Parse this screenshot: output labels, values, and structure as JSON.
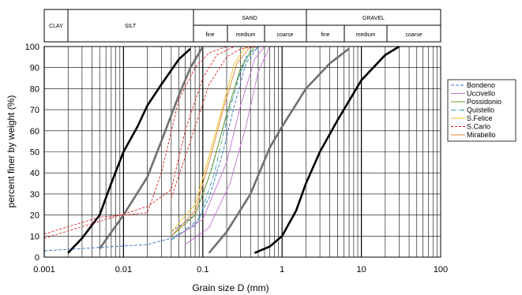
{
  "chart_data": {
    "type": "line",
    "xscale": "log",
    "xlim": [
      0.001,
      100
    ],
    "ylim": [
      0,
      100
    ],
    "xlabel": "Grain size D (mm)",
    "ylabel": "percent finer by weight (%)",
    "xticks": [
      "0.001",
      "0.01",
      "0.1",
      "1",
      "10",
      "100"
    ],
    "yticks": [
      "0",
      "10",
      "20",
      "30",
      "40",
      "50",
      "60",
      "70",
      "80",
      "90",
      "100"
    ],
    "grid": true,
    "legend_position": "right",
    "classification": {
      "clay": "CLAY",
      "silt": "SILT",
      "sand": "SAND",
      "gravel": "GRAVEL",
      "fine": "fine",
      "medium": "medium",
      "coarse": "coarse"
    },
    "envelopes": [
      {
        "color": "#000000",
        "x": [
          0.002,
          0.003,
          0.005,
          0.007,
          0.01,
          0.015,
          0.02,
          0.03,
          0.05,
          0.07
        ],
        "y": [
          2,
          9,
          20,
          35,
          50,
          62,
          72,
          82,
          94,
          99
        ]
      },
      {
        "color": "#707070",
        "x": [
          0.005,
          0.01,
          0.02,
          0.03,
          0.05,
          0.07,
          0.1
        ],
        "y": [
          4,
          20,
          38,
          55,
          77,
          90,
          100
        ]
      },
      {
        "color": "#707070",
        "x": [
          0.12,
          0.2,
          0.4,
          0.7,
          1.0,
          2.0,
          4.0,
          7.0
        ],
        "y": [
          2,
          12,
          30,
          52,
          62,
          80,
          92,
          99
        ]
      },
      {
        "color": "#000000",
        "x": [
          0.45,
          0.7,
          1.0,
          1.5,
          2.0,
          3.0,
          5.0,
          10.0,
          20.0,
          30.0
        ],
        "y": [
          2,
          5,
          10,
          22,
          35,
          50,
          65,
          84,
          96,
          100
        ]
      }
    ],
    "series": [
      {
        "name": "Bondeno",
        "color": "#2f6fc0",
        "dash": "4,2",
        "curves": [
          {
            "x": [
              0.001,
              0.02,
              0.04,
              0.08,
              0.12,
              0.18,
              0.25,
              0.35,
              0.5
            ],
            "y": [
              3,
              6,
              9,
              15,
              28,
              50,
              72,
              92,
              100
            ]
          },
          {
            "x": [
              0.04,
              0.08,
              0.12,
              0.17,
              0.25,
              0.35,
              0.5
            ],
            "y": [
              12,
              20,
              38,
              58,
              80,
              95,
              100
            ]
          }
        ]
      },
      {
        "name": "Uccivello",
        "color": "#c070d0",
        "dash": "",
        "curves": [
          {
            "x": [
              0.04,
              0.1,
              0.2,
              0.3,
              0.45,
              0.6
            ],
            "y": [
              8,
              18,
              45,
              72,
              94,
              100
            ]
          },
          {
            "x": [
              0.06,
              0.12,
              0.22,
              0.35,
              0.5,
              0.7
            ],
            "y": [
              6,
              14,
              35,
              62,
              88,
              100
            ]
          }
        ]
      },
      {
        "name": "Possidonio",
        "color": "#6a9a20",
        "dash": "",
        "curves": [
          {
            "x": [
              0.04,
              0.08,
              0.13,
              0.2,
              0.3,
              0.45
            ],
            "y": [
              10,
              20,
              42,
              68,
              90,
              100
            ]
          }
        ]
      },
      {
        "name": "Quistello",
        "color": "#30a0a0",
        "dash": "6,2,1,2",
        "curves": [
          {
            "x": [
              0.04,
              0.09,
              0.14,
              0.2,
              0.3,
              0.42
            ],
            "y": [
              8,
              18,
              40,
              65,
              88,
              100
            ]
          }
        ]
      },
      {
        "name": "S.Felice",
        "color": "#f0c020",
        "dash": "",
        "curves": [
          {
            "x": [
              0.04,
              0.08,
              0.12,
              0.18,
              0.25,
              0.35
            ],
            "y": [
              12,
              25,
              48,
              72,
              92,
              100
            ]
          }
        ]
      },
      {
        "name": "S.Carlo",
        "color": "#e02020",
        "dash": "3,2",
        "curves": [
          {
            "x": [
              0.001,
              0.005,
              0.02,
              0.04,
              0.06,
              0.1,
              0.15,
              0.25
            ],
            "y": [
              9,
              17,
              24,
              32,
              60,
              85,
              96,
              100
            ]
          },
          {
            "x": [
              0.001,
              0.005,
              0.02,
              0.03,
              0.05,
              0.08,
              0.12,
              0.2
            ],
            "y": [
              11,
              19,
              21,
              40,
              75,
              90,
              97,
              100
            ]
          },
          {
            "x": [
              0.04,
              0.07,
              0.12,
              0.2,
              0.3,
              0.5
            ],
            "y": [
              28,
              55,
              82,
              95,
              99,
              100
            ]
          }
        ]
      },
      {
        "name": "Mirabello",
        "color": "#e08030",
        "dash": "",
        "curves": [
          {
            "x": [
              0.04,
              0.08,
              0.12,
              0.18,
              0.27,
              0.4
            ],
            "y": [
              10,
              22,
              45,
              70,
              92,
              100
            ]
          }
        ]
      }
    ]
  }
}
